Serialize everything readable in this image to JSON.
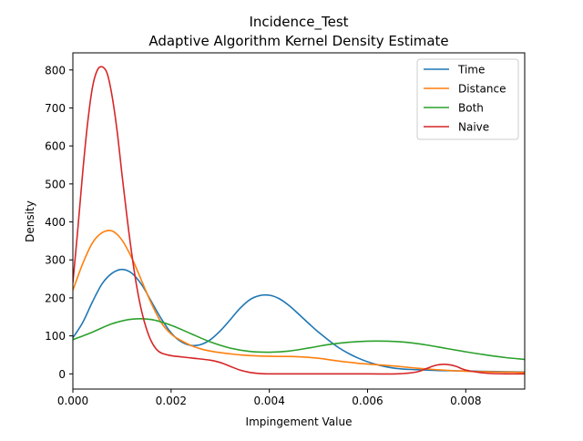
{
  "chart_data": {
    "type": "line",
    "title": "Incidence_Test",
    "subtitle": "Adaptive Algorithm Kernel Density Estimate",
    "xlabel": "Impingement Value",
    "ylabel": "Density",
    "xlim": [
      0,
      0.0092
    ],
    "ylim": [
      -40,
      845
    ],
    "xticks": [
      0,
      0.002,
      0.004,
      0.006,
      0.008
    ],
    "xtick_labels": [
      "0.000",
      "0.002",
      "0.004",
      "0.006",
      "0.008"
    ],
    "yticks": [
      0,
      100,
      200,
      300,
      400,
      500,
      600,
      700,
      800
    ],
    "ytick_labels": [
      "0",
      "100",
      "200",
      "300",
      "400",
      "500",
      "600",
      "700",
      "800"
    ],
    "grid": false,
    "legend_position": "upper right",
    "series": [
      {
        "name": "Time",
        "color": "#1f77b4",
        "x": [
          0,
          0.0002,
          0.0004,
          0.0006,
          0.0008,
          0.001,
          0.0012,
          0.0014,
          0.0016,
          0.0018,
          0.002,
          0.0022,
          0.0024,
          0.0026,
          0.0028,
          0.003,
          0.0032,
          0.0034,
          0.0036,
          0.0038,
          0.004,
          0.0042,
          0.0044,
          0.0046,
          0.0048,
          0.005,
          0.0054,
          0.0058,
          0.0062,
          0.0066,
          0.007,
          0.0074,
          0.0078,
          0.0082,
          0.0086,
          0.0092
        ],
        "y": [
          95,
          135,
          190,
          238,
          265,
          275,
          265,
          235,
          190,
          145,
          108,
          85,
          75,
          77,
          90,
          113,
          142,
          172,
          195,
          206,
          207,
          198,
          180,
          157,
          133,
          110,
          70,
          42,
          24,
          14,
          11,
          9,
          8,
          7,
          6,
          5
        ]
      },
      {
        "name": "Distance",
        "color": "#ff7f0e",
        "x": [
          0,
          0.0002,
          0.0004,
          0.0006,
          0.0008,
          0.001,
          0.0012,
          0.0014,
          0.0016,
          0.0018,
          0.002,
          0.0022,
          0.0024,
          0.0026,
          0.0028,
          0.003,
          0.0034,
          0.0038,
          0.0042,
          0.0046,
          0.005,
          0.0054,
          0.0058,
          0.0062,
          0.0066,
          0.007,
          0.0074,
          0.0078,
          0.0082,
          0.0086,
          0.0092
        ],
        "y": [
          220,
          290,
          345,
          372,
          376,
          352,
          305,
          245,
          185,
          135,
          105,
          88,
          75,
          66,
          60,
          56,
          50,
          47,
          46,
          45,
          41,
          34,
          28,
          24,
          20,
          15,
          11,
          8,
          6,
          5,
          4
        ]
      },
      {
        "name": "Both",
        "color": "#2ca02c",
        "x": [
          0,
          0.0004,
          0.0008,
          0.0012,
          0.0016,
          0.002,
          0.0024,
          0.0028,
          0.0032,
          0.0036,
          0.004,
          0.0044,
          0.0048,
          0.0052,
          0.0056,
          0.006,
          0.0064,
          0.0068,
          0.0072,
          0.0076,
          0.008,
          0.0084,
          0.0088,
          0.0092
        ],
        "y": [
          90,
          110,
          132,
          144,
          143,
          128,
          106,
          84,
          68,
          59,
          57,
          60,
          68,
          77,
          83,
          86,
          86,
          83,
          76,
          67,
          58,
          50,
          43,
          38
        ]
      },
      {
        "name": "Naive",
        "color": "#d62728",
        "x": [
          0,
          0.0001,
          0.0002,
          0.0003,
          0.0004,
          0.0005,
          0.0006,
          0.0007,
          0.0008,
          0.0009,
          0.001,
          0.0011,
          0.0012,
          0.0013,
          0.0014,
          0.0015,
          0.0016,
          0.0017,
          0.0018,
          0.002,
          0.0024,
          0.0028,
          0.003,
          0.0032,
          0.0034,
          0.0036,
          0.0038,
          0.004,
          0.0044,
          0.005,
          0.006,
          0.0066,
          0.007,
          0.0072,
          0.0074,
          0.0076,
          0.0078,
          0.008,
          0.0084,
          0.0088,
          0.0092
        ],
        "y": [
          240,
          380,
          530,
          660,
          755,
          800,
          808,
          790,
          730,
          640,
          525,
          415,
          315,
          230,
          165,
          118,
          85,
          65,
          55,
          48,
          42,
          36,
          30,
          20,
          10,
          4,
          1,
          0,
          0,
          0,
          0,
          0,
          5,
          14,
          23,
          25,
          20,
          10,
          2,
          0,
          0
        ]
      }
    ]
  }
}
